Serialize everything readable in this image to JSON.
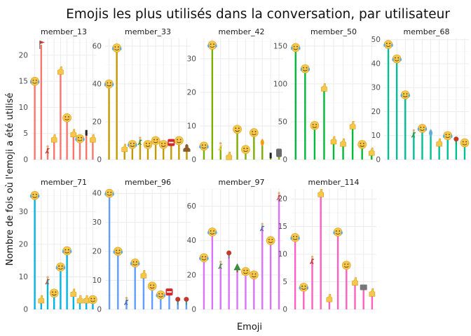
{
  "chart_data": {
    "type": "bar",
    "title": "Emojis les plus utilisés dans la conversation, par utilisateur",
    "xlabel": "Emoji",
    "ylabel": "Nombre de fois où l'emoji a été utilisé",
    "legend": "none",
    "grid": true,
    "panels": [
      {
        "name": "member_13",
        "color": "#F8766D",
        "ylim": [
          0,
          23.2
        ],
        "yticks": [
          0,
          5,
          10,
          15,
          20
        ],
        "values": [
          15,
          22,
          2,
          4,
          17,
          8,
          5,
          4,
          5,
          4
        ],
        "emojis": [
          "face-tears-of-joy",
          "triangular-flag",
          "person-running",
          "thumbs-up",
          "raised-hand",
          "grimacing-face",
          "index-pointing-up",
          "crying-face",
          "black-small-square",
          "raised-back-of-hand"
        ]
      },
      {
        "name": "member_33",
        "color": "#C49A00",
        "ylim": [
          0,
          64
        ],
        "yticks": [
          0,
          20,
          40,
          60
        ],
        "values": [
          40,
          59,
          6,
          8,
          10,
          8,
          10,
          8,
          9,
          10,
          6
        ],
        "emojis": [
          "rolling-on-floor-laughing",
          "face-tears-of-joy",
          "thumbs-up",
          "face-rolling-eyes",
          "man-shrugging",
          "smiling-face-with-sunglasses",
          "smiling-face",
          "face-with-steam",
          "no-entry",
          "heart-eyes",
          "poop"
        ]
      },
      {
        "name": "member_42",
        "color": "#7CAE00",
        "ylim": [
          0,
          36
        ],
        "yticks": [
          0,
          10,
          20,
          30
        ],
        "values": [
          4,
          34,
          4,
          1,
          9,
          3,
          8,
          5,
          1,
          2
        ],
        "emojis": [
          "rolling-on-floor-laughing",
          "face-tears-of-joy",
          "person-walking",
          "thumbs-up",
          "grimacing-face",
          "face-with-tongue",
          "smirking-face",
          "fire",
          "exclamation",
          "moai"
        ]
      },
      {
        "name": "member_50",
        "color": "#00BA38",
        "ylim": [
          0,
          160
        ],
        "yticks": [
          0,
          50,
          100,
          150
        ],
        "values": [
          148,
          120,
          45,
          95,
          25,
          22,
          45,
          20,
          10
        ],
        "emojis": [
          "face-tears-of-joy",
          "rolling-on-floor-laughing",
          "face-screaming",
          "raising-hands",
          "raised-hand",
          "thumbs-up",
          "point-down",
          "face-with-tongue",
          "folded-hands"
        ]
      },
      {
        "name": "member_68",
        "color": "#00BF96",
        "ylim": [
          0,
          50.5
        ],
        "yticks": [
          0,
          10,
          20,
          30,
          40,
          50
        ],
        "values": [
          48,
          42,
          27,
          11,
          13,
          11,
          7,
          10,
          8,
          7
        ],
        "emojis": [
          "rolling-on-floor-laughing",
          "face-tears-of-joy",
          "crying-face",
          "woman-running",
          "face-rolling-eyes",
          "water-drops",
          "thumbs-up",
          "crying-face",
          "rose",
          "laughing-face"
        ]
      },
      {
        "name": "member_71",
        "color": "#00B4E4",
        "ylim": [
          0,
          37
        ],
        "yticks": [
          0,
          10,
          20,
          30
        ],
        "values": [
          35,
          3,
          9,
          5,
          13,
          18,
          5,
          3,
          3,
          3
        ],
        "emojis": [
          "face-tears-of-joy",
          "raising-hands",
          "person-running",
          "pouting-face",
          "crying-face",
          "face-tears-of-joy-2",
          "raised-hand",
          "thumbs-up",
          "folded-hands",
          "slightly-smiling-face"
        ]
      },
      {
        "name": "member_96",
        "color": "#619CFF",
        "ylim": [
          0,
          41.5
        ],
        "yticks": [
          0,
          10,
          20,
          30,
          40
        ],
        "values": [
          40,
          20,
          3,
          16,
          12,
          8,
          5,
          6,
          3,
          3
        ],
        "emojis": [
          "rolling-on-floor-laughing",
          "face-tears-of-joy",
          "person-running",
          "crying-face",
          "raising-hands",
          "grimacing-face",
          "face-tears",
          "stop-sign",
          "tulip",
          "flower"
        ]
      },
      {
        "name": "member_97",
        "color": "#DB72FB",
        "ylim": [
          0,
          70
        ],
        "yticks": [
          0,
          20,
          40,
          60
        ],
        "values": [
          30,
          45,
          26,
          32,
          24,
          22,
          20,
          48,
          40,
          66
        ],
        "emojis": [
          "rolling-on-floor-laughing",
          "face-tears-of-joy",
          "woman-running",
          "rose",
          "christmas-tree",
          "pouting-face",
          "laughing-face",
          "person-dancing",
          "pouting-face-2",
          "person-walking"
        ]
      },
      {
        "name": "member_114",
        "color": "#FF61C3",
        "ylim": [
          0,
          21.8
        ],
        "yticks": [
          0,
          5,
          10,
          15,
          20
        ],
        "values": [
          13,
          4,
          9,
          21,
          2,
          14,
          8,
          5,
          4,
          3
        ],
        "emojis": [
          "face-tears-of-joy",
          "rolling-on-floor-laughing",
          "person-walking",
          "thumbs-up",
          "raised-hand",
          "crying-face",
          "grimacing-face",
          "raising-hands",
          "tv",
          "folded-hands"
        ]
      }
    ]
  }
}
